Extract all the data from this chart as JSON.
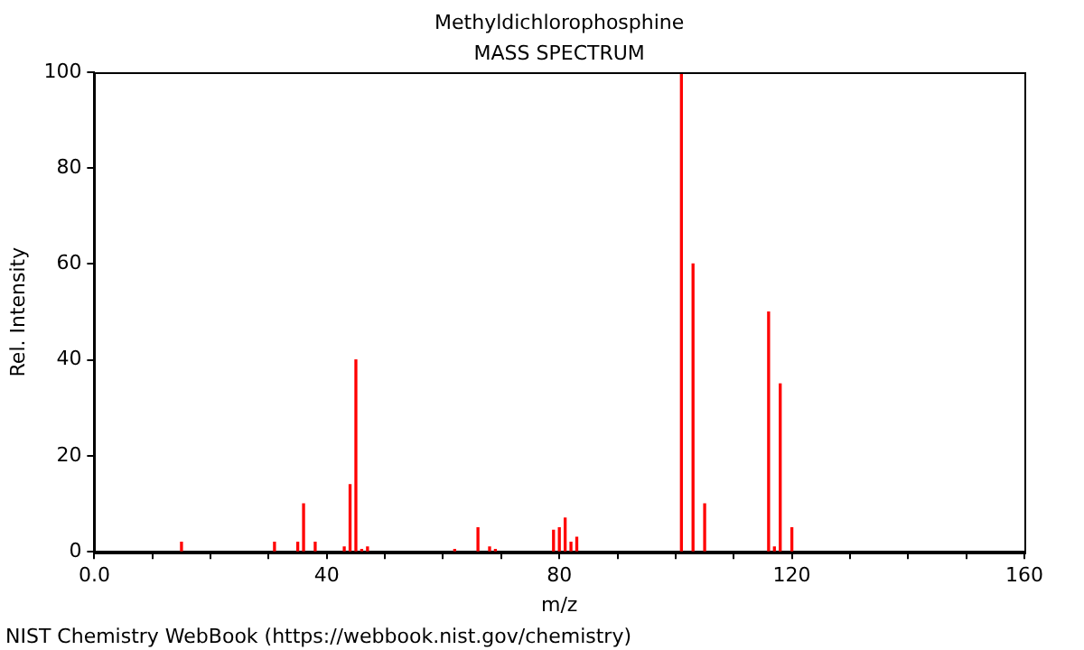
{
  "chart_data": {
    "type": "bar",
    "title": "Methyldichlorophosphine",
    "subtitle": "MASS SPECTRUM",
    "xlabel": "m/z",
    "ylabel": "Rel. Intensity",
    "x": [
      15,
      31,
      35,
      36,
      38,
      43,
      44,
      45,
      46,
      47,
      62,
      66,
      68,
      69,
      79,
      80,
      81,
      82,
      83,
      101,
      103,
      105,
      116,
      117,
      118,
      120
    ],
    "values": [
      2,
      2,
      2,
      10,
      2,
      1,
      14,
      40,
      0.5,
      1,
      0.5,
      5,
      1,
      0.5,
      4.5,
      5,
      7,
      2,
      3,
      100,
      60,
      10,
      50,
      1,
      35,
      5
    ],
    "color": "#ff0000",
    "xlim": [
      0,
      160
    ],
    "xticks": [
      {
        "value": 0,
        "label": "0.0"
      },
      {
        "value": 10,
        "label": null
      },
      {
        "value": 20,
        "label": null
      },
      {
        "value": 30,
        "label": null
      },
      40,
      {
        "value": 50,
        "label": null
      },
      {
        "value": 60,
        "label": null
      },
      {
        "value": 70,
        "label": null
      },
      80,
      {
        "value": 90,
        "label": null
      },
      {
        "value": 100,
        "label": null
      },
      {
        "value": 110,
        "label": null
      },
      120,
      {
        "value": 130,
        "label": null
      },
      {
        "value": 140,
        "label": null
      },
      {
        "value": 150,
        "label": null
      },
      160
    ],
    "ylim": [
      0,
      100
    ],
    "yticks": [
      0,
      20,
      40,
      60,
      80,
      100
    ],
    "grid": false,
    "legend": false,
    "annotations": [
      "NIST Chemistry WebBook (https://webbook.nist.gov/chemistry)"
    ]
  }
}
